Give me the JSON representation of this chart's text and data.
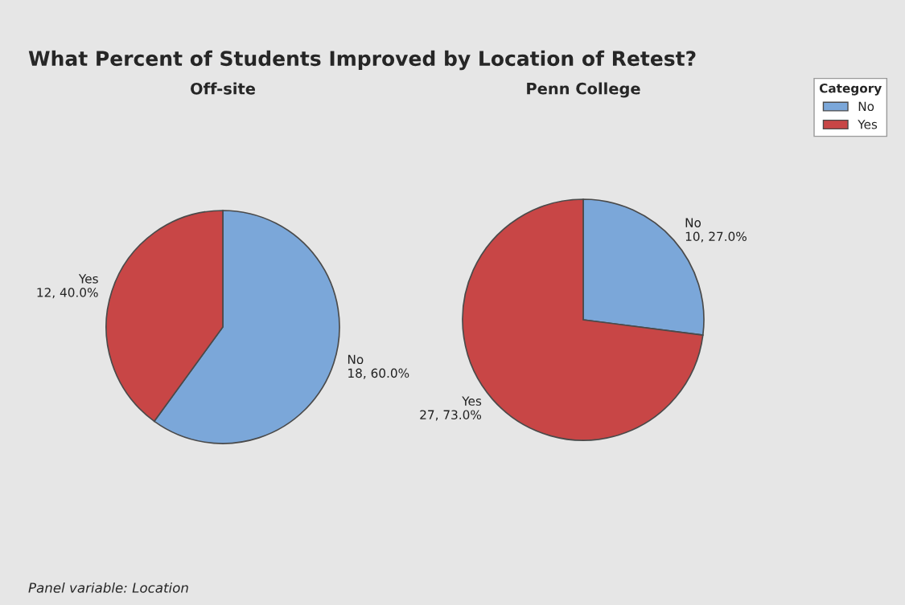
{
  "chart_data": [
    {
      "type": "pie",
      "title": "What Percent of Students Improved by Location of Retest?",
      "subtitle": "Off-site",
      "categories": [
        "No",
        "Yes"
      ],
      "values": [
        18,
        12
      ],
      "colors": [
        "#7ba7d9",
        "#c84646"
      ],
      "value_labels": [
        "18, 60.0%",
        "12, 40.0%"
      ],
      "annotations": [
        "Panel variable: Location"
      ]
    },
    {
      "type": "pie",
      "subtitle": "Penn College",
      "categories": [
        "No",
        "Yes"
      ],
      "values": [
        10,
        27
      ],
      "colors": [
        "#7ba7d9",
        "#c84646"
      ],
      "value_labels": [
        "10, 27.0%",
        "27, 73.0%"
      ],
      "legend": "top right",
      "legend_title": "Category"
    }
  ]
}
